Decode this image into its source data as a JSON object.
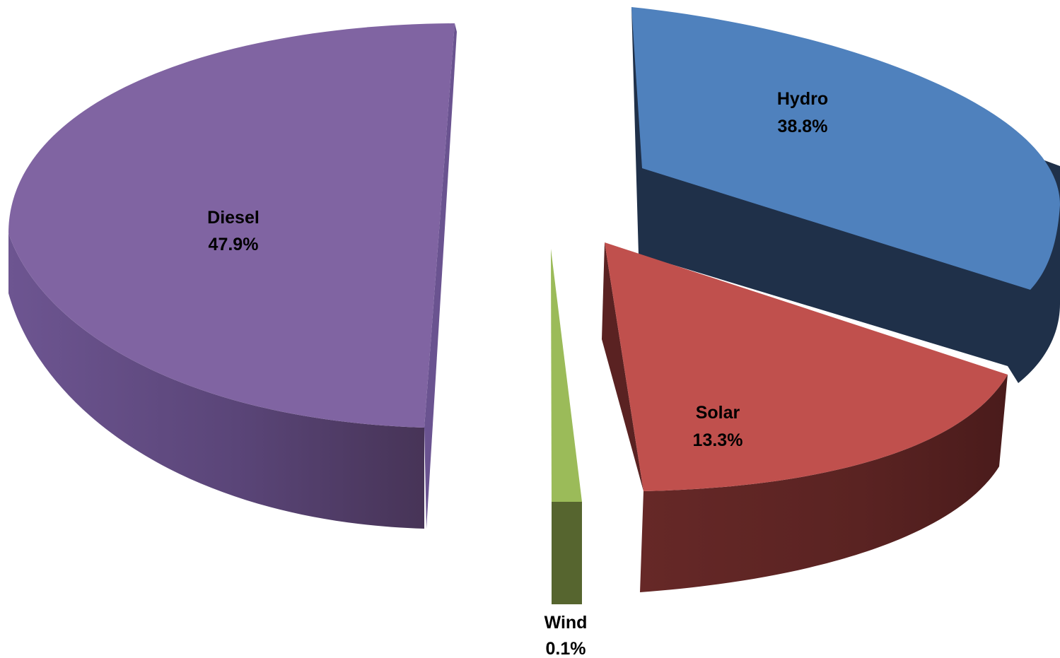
{
  "chart_data": {
    "type": "pie",
    "style": "3d-exploded",
    "title": "",
    "slices": [
      {
        "name": "Hydro",
        "value": 38.8,
        "value_label": "38.8%",
        "color": "#4f81bd",
        "side_color": "#1f3049"
      },
      {
        "name": "Solar",
        "value": 13.3,
        "value_label": "13.3%",
        "color": "#c0504d",
        "side_color": "#5a2222"
      },
      {
        "name": "Wind",
        "value": 0.1,
        "value_label": "0.1%",
        "color": "#9bbb59",
        "side_color": "#56652f"
      },
      {
        "name": "Diesel",
        "value": 47.9,
        "value_label": "47.9%",
        "color": "#8064a2",
        "side_color": "#5e4a80"
      }
    ]
  }
}
